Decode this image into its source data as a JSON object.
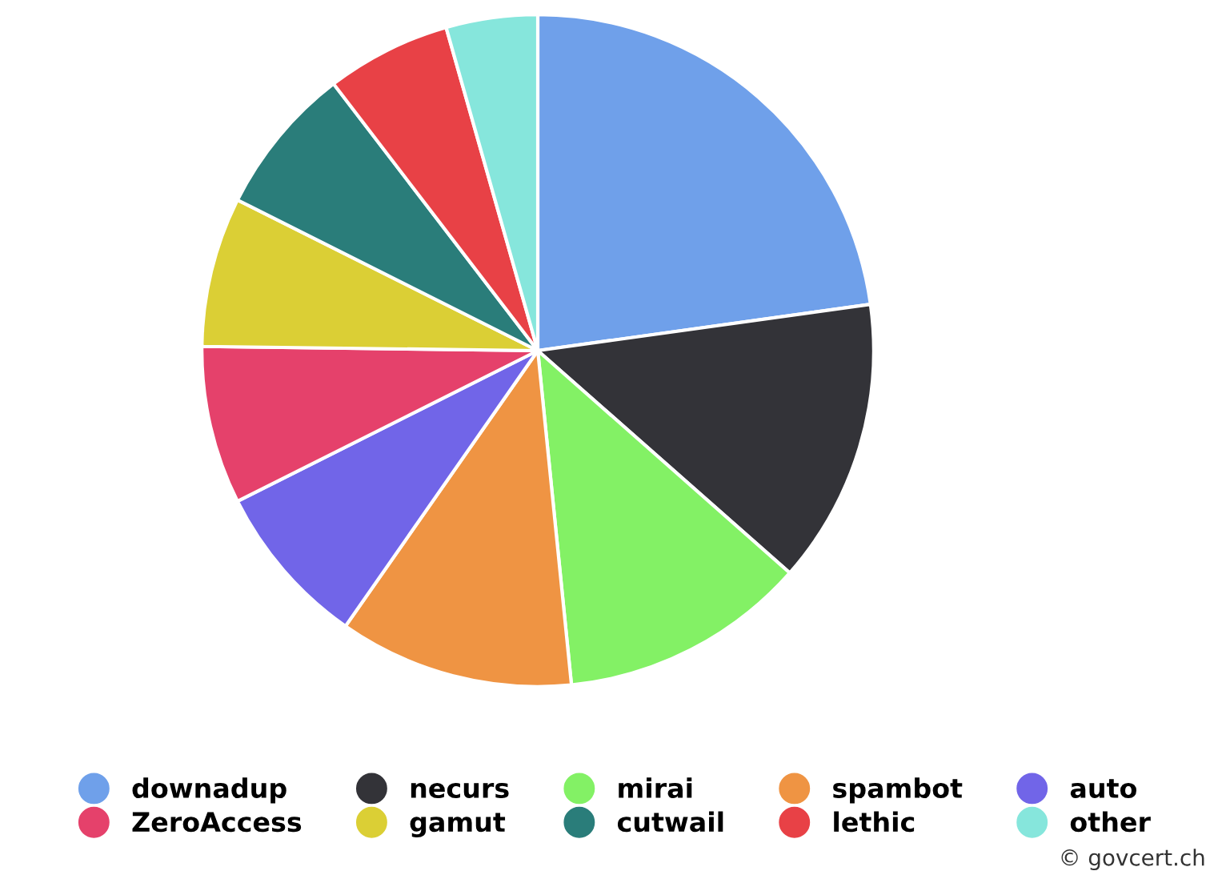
{
  "chart_data": {
    "type": "pie",
    "categories": [
      "downadup",
      "necurs",
      "mirai",
      "spambot",
      "auto",
      "ZeroAccess",
      "gamut",
      "cutwail",
      "lethic",
      "other"
    ],
    "values": [
      22.8,
      13.7,
      11.9,
      11.3,
      7.9,
      7.6,
      7.2,
      7.2,
      6.0,
      4.4
    ],
    "colors": [
      "#6fa0ea",
      "#333338",
      "#83f165",
      "#ef9443",
      "#7165e8",
      "#e5416b",
      "#dbcf35",
      "#2a7d7a",
      "#e84146",
      "#86e6dc"
    ],
    "legend": "bottom",
    "annotations": [
      "© govcert.ch"
    ]
  }
}
